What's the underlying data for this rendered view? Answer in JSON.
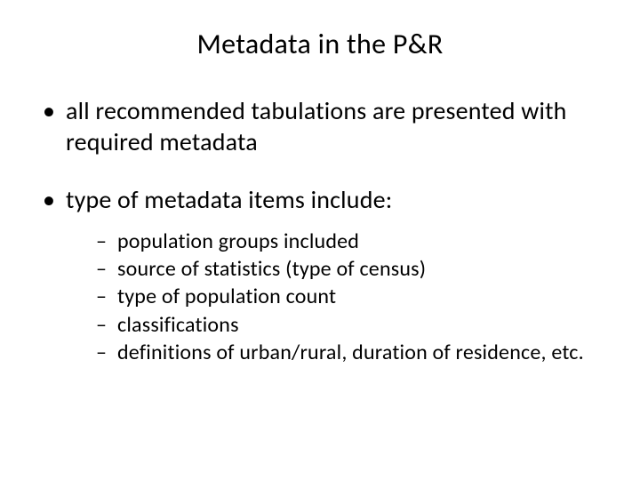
{
  "slide": {
    "title": "Metadata in the P&R",
    "title_fontsize": 32,
    "body_fontsize": 28,
    "sub_fontsize": 24,
    "text_color": "#000000",
    "background_color": "#ffffff",
    "font_family": "Calibri",
    "bullets": [
      {
        "text": "all recommended tabulations are presented with required metadata",
        "subs": []
      },
      {
        "text": "type of metadata items include:",
        "subs": [
          "population groups included",
          "source of statistics (type of census)",
          "type of population count",
          "classifications",
          "definitions of urban/rural, duration of residence, etc."
        ]
      }
    ]
  }
}
